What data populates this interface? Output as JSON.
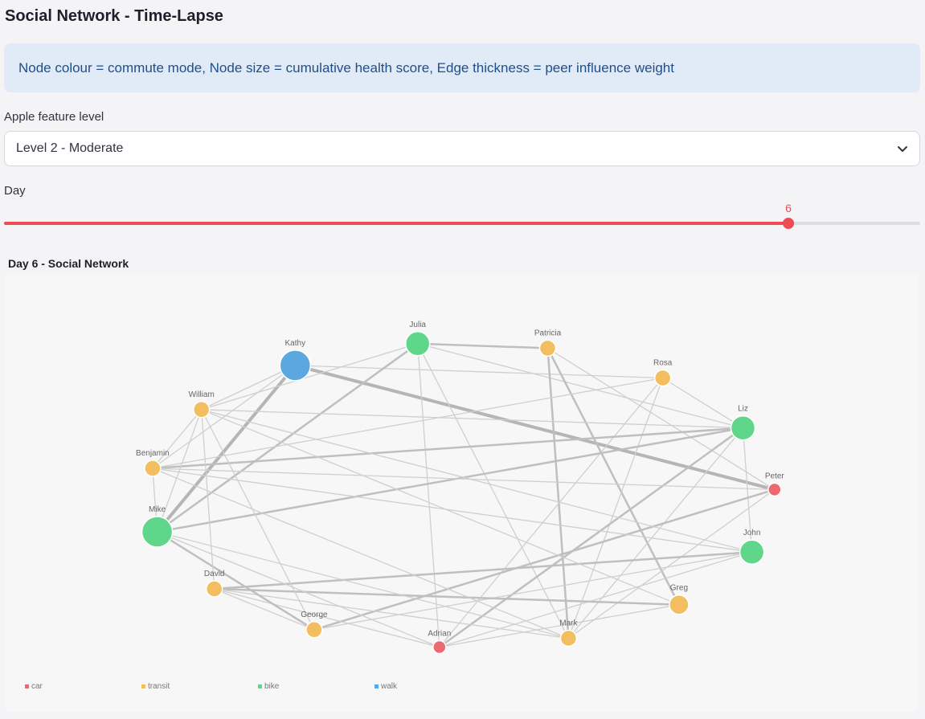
{
  "header": {
    "title": "Social Network - Time-Lapse"
  },
  "info": {
    "text": "Node colour = commute mode, Node size = cumulative health score, Edge thickness = peer influence weight"
  },
  "feature_select": {
    "label": "Apple feature level",
    "value": "Level 2 - Moderate"
  },
  "day_slider": {
    "label": "Day",
    "value": "6",
    "fraction": 0.856
  },
  "network": {
    "title": "Day 6 - Social Network",
    "colors": {
      "car": "#ec6a6f",
      "transit": "#f2be5f",
      "bike": "#5fd68a",
      "walk": "#5ba8e0"
    },
    "legend": [
      {
        "mode": "car",
        "label": "car"
      },
      {
        "mode": "transit",
        "label": "transit"
      },
      {
        "mode": "bike",
        "label": "bike"
      },
      {
        "mode": "walk",
        "label": "walk"
      }
    ],
    "nodes": [
      {
        "name": "Julia",
        "mode": "bike",
        "size": 3
      },
      {
        "name": "Patricia",
        "mode": "transit",
        "size": 1
      },
      {
        "name": "Rosa",
        "mode": "transit",
        "size": 1
      },
      {
        "name": "Liz",
        "mode": "bike",
        "size": 3
      },
      {
        "name": "Peter",
        "mode": "car",
        "size": 0
      },
      {
        "name": "John",
        "mode": "bike",
        "size": 3
      },
      {
        "name": "Greg",
        "mode": "transit",
        "size": 2
      },
      {
        "name": "Mark",
        "mode": "transit",
        "size": 1
      },
      {
        "name": "Adrian",
        "mode": "car",
        "size": 0
      },
      {
        "name": "George",
        "mode": "transit",
        "size": 1
      },
      {
        "name": "David",
        "mode": "transit",
        "size": 1
      },
      {
        "name": "Mike",
        "mode": "bike",
        "size": 4
      },
      {
        "name": "Benjamin",
        "mode": "transit",
        "size": 1
      },
      {
        "name": "William",
        "mode": "transit",
        "size": 1
      },
      {
        "name": "Kathy",
        "mode": "walk",
        "size": 4
      }
    ],
    "edges": [
      [
        "Kathy",
        "Peter",
        3
      ],
      [
        "Kathy",
        "Mike",
        3
      ],
      [
        "Kathy",
        "Rosa",
        1
      ],
      [
        "Kathy",
        "William",
        1
      ],
      [
        "Kathy",
        "Benjamin",
        1
      ],
      [
        "Julia",
        "Patricia",
        2
      ],
      [
        "Julia",
        "Mike",
        2
      ],
      [
        "Julia",
        "Adrian",
        1
      ],
      [
        "Julia",
        "William",
        1
      ],
      [
        "Julia",
        "Liz",
        1
      ],
      [
        "Julia",
        "Mark",
        1
      ],
      [
        "Patricia",
        "Mark",
        2
      ],
      [
        "Patricia",
        "Greg",
        2
      ],
      [
        "Patricia",
        "Peter",
        1
      ],
      [
        "Rosa",
        "Liz",
        1
      ],
      [
        "Rosa",
        "Adrian",
        1
      ],
      [
        "Rosa",
        "Benjamin",
        1
      ],
      [
        "Rosa",
        "Mark",
        1
      ],
      [
        "Liz",
        "Benjamin",
        2
      ],
      [
        "Liz",
        "Mike",
        2
      ],
      [
        "Liz",
        "Adrian",
        2
      ],
      [
        "Liz",
        "John",
        1
      ],
      [
        "Liz",
        "William",
        1
      ],
      [
        "Liz",
        "Mark",
        1
      ],
      [
        "Peter",
        "Benjamin",
        1
      ],
      [
        "Peter",
        "George",
        2
      ],
      [
        "Peter",
        "Mark",
        1
      ],
      [
        "John",
        "David",
        2
      ],
      [
        "John",
        "William",
        1
      ],
      [
        "John",
        "Benjamin",
        1
      ],
      [
        "John",
        "George",
        1
      ],
      [
        "John",
        "Adrian",
        1
      ],
      [
        "Greg",
        "David",
        2
      ],
      [
        "Greg",
        "William",
        1
      ],
      [
        "Greg",
        "Adrian",
        1
      ],
      [
        "Mark",
        "Benjamin",
        1
      ],
      [
        "Mark",
        "Mike",
        1
      ],
      [
        "Mark",
        "David",
        1
      ],
      [
        "Adrian",
        "David",
        1
      ],
      [
        "Adrian",
        "Mike",
        1
      ],
      [
        "George",
        "Mike",
        2
      ],
      [
        "George",
        "William",
        1
      ],
      [
        "David",
        "William",
        1
      ],
      [
        "David",
        "George",
        1
      ],
      [
        "Mike",
        "William",
        1
      ],
      [
        "Mike",
        "Benjamin",
        1
      ],
      [
        "Benjamin",
        "William",
        1
      ]
    ]
  }
}
